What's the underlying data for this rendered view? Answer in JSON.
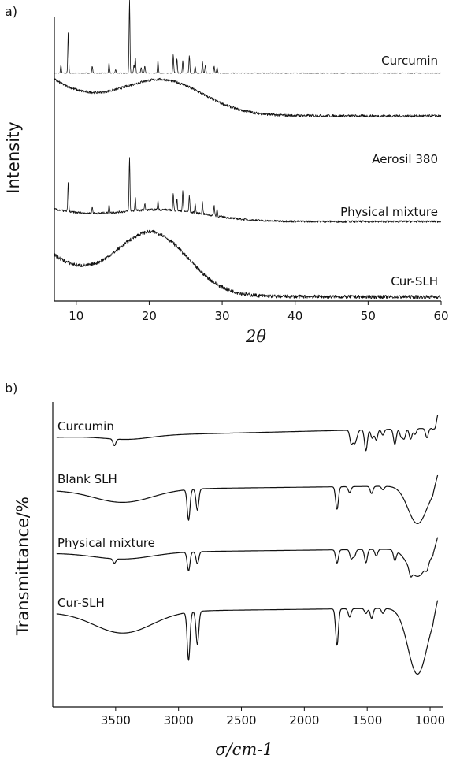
{
  "colors": {
    "trace": "#111111",
    "background": "#ffffff"
  },
  "chart_data": [
    {
      "panel_label": "a)",
      "type": "line",
      "xlabel": "2θ",
      "ylabel": "Intensity",
      "xlim": [
        7,
        60
      ],
      "x_ticks": [
        10,
        20,
        30,
        40,
        50,
        60
      ],
      "grid": false,
      "y_tick_labels": false,
      "series": [
        {
          "name": "Curcumin",
          "baseline": 0.08,
          "peaks": [
            [
              7.9,
              0.35
            ],
            [
              8.9,
              1.8
            ],
            [
              12.2,
              0.3
            ],
            [
              14.5,
              0.45
            ],
            [
              15.4,
              0.15
            ],
            [
              17.3,
              3.2
            ],
            [
              17.9,
              0.35
            ],
            [
              18.1,
              0.7
            ],
            [
              18.9,
              0.25
            ],
            [
              19.4,
              0.3
            ],
            [
              21.2,
              0.55
            ],
            [
              23.3,
              0.8
            ],
            [
              23.8,
              0.65
            ],
            [
              24.6,
              0.55
            ],
            [
              25.5,
              0.75
            ],
            [
              26.3,
              0.3
            ],
            [
              27.3,
              0.5
            ],
            [
              27.7,
              0.35
            ],
            [
              28.9,
              0.3
            ],
            [
              29.3,
              0.25
            ]
          ],
          "hump": null
        },
        {
          "name": "Aerosil 380",
          "baseline": 0.1,
          "peaks": [],
          "hump": {
            "center": 22,
            "height": 0.85,
            "width": 5.5
          },
          "low_angle_rise": 0.95
        },
        {
          "name": "Physical mixture",
          "baseline": 0.1,
          "peaks": [
            [
              8.9,
              1.0
            ],
            [
              12.2,
              0.2
            ],
            [
              14.5,
              0.3
            ],
            [
              17.3,
              1.8
            ],
            [
              18.1,
              0.45
            ],
            [
              19.4,
              0.2
            ],
            [
              21.2,
              0.3
            ],
            [
              23.3,
              0.55
            ],
            [
              23.8,
              0.4
            ],
            [
              24.6,
              0.7
            ],
            [
              25.5,
              0.55
            ],
            [
              26.3,
              0.3
            ],
            [
              27.3,
              0.4
            ],
            [
              28.9,
              0.35
            ],
            [
              29.3,
              0.25
            ]
          ],
          "hump": {
            "center": 22,
            "height": 0.35,
            "width": 6
          },
          "low_angle_rise": 0.4
        },
        {
          "name": "Cur-SLH",
          "baseline": 0.05,
          "peaks": [],
          "hump": {
            "center": 20.5,
            "height": 1.15,
            "width": 4.8
          },
          "low_angle_rise": 0.8
        }
      ]
    },
    {
      "panel_label": "b)",
      "type": "line",
      "xlabel": "σ/cm-1",
      "ylabel": "Transmittance/%",
      "xlim": [
        4000,
        900
      ],
      "x_ticks": [
        3500,
        3000,
        2500,
        2000,
        1500,
        1000
      ],
      "grid": false,
      "y_tick_labels": false,
      "series": [
        {
          "name": "Curcumin",
          "broad_oh": {
            "center": 3400,
            "depth": 0.2,
            "width": 180
          },
          "bands": [
            [
              3510,
              0.35
            ],
            [
              1627,
              0.7
            ],
            [
              1602,
              0.6
            ],
            [
              1584,
              0.3
            ],
            [
              1510,
              1.1
            ],
            [
              1460,
              0.45
            ],
            [
              1428,
              0.55
            ],
            [
              1376,
              0.3
            ],
            [
              1280,
              0.8
            ],
            [
              1230,
              0.4
            ],
            [
              1206,
              0.5
            ],
            [
              1155,
              0.55
            ],
            [
              1120,
              0.3
            ],
            [
              1025,
              0.5
            ],
            [
              960,
              0.35
            ]
          ],
          "si_band": null
        },
        {
          "name": "Blank SLH",
          "broad_oh": {
            "center": 3440,
            "depth": 0.55,
            "width": 230
          },
          "bands": [
            [
              2920,
              1.3
            ],
            [
              2850,
              0.9
            ],
            [
              1740,
              0.95
            ],
            [
              1640,
              0.25
            ],
            [
              1465,
              0.3
            ],
            [
              1375,
              0.15
            ]
          ],
          "si_band": {
            "center": 1100,
            "depth": 1.6,
            "width": 75
          }
        },
        {
          "name": "Physical mixture",
          "broad_oh": {
            "center": 3440,
            "depth": 0.3,
            "width": 230
          },
          "bands": [
            [
              3510,
              0.2
            ],
            [
              2920,
              0.85
            ],
            [
              2850,
              0.55
            ],
            [
              1740,
              0.6
            ],
            [
              1627,
              0.4
            ],
            [
              1602,
              0.3
            ],
            [
              1510,
              0.6
            ],
            [
              1428,
              0.3
            ],
            [
              1280,
              0.45
            ],
            [
              1155,
              0.3
            ],
            [
              1025,
              0.25
            ]
          ],
          "si_band": {
            "center": 1100,
            "depth": 1.25,
            "width": 75
          }
        },
        {
          "name": "Cur-SLH",
          "broad_oh": {
            "center": 3440,
            "depth": 0.65,
            "width": 230
          },
          "bands": [
            [
              2920,
              1.45
            ],
            [
              2850,
              1.0
            ],
            [
              1740,
              1.1
            ],
            [
              1640,
              0.25
            ],
            [
              1510,
              0.15
            ],
            [
              1465,
              0.3
            ],
            [
              1375,
              0.15
            ]
          ],
          "si_band": {
            "center": 1100,
            "depth": 2.0,
            "width": 75
          }
        }
      ]
    }
  ]
}
